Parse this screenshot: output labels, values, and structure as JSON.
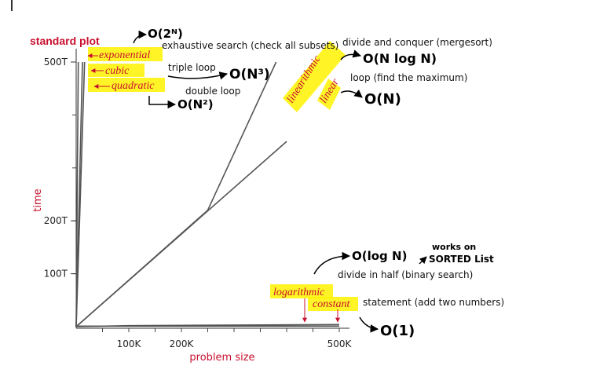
{
  "chart_data": {
    "type": "line",
    "title": "standard plot",
    "xlabel": "problem size",
    "ylabel": "time",
    "xlim": [
      0,
      500000
    ],
    "ylim": [
      0,
      500
    ],
    "x_ticks": [
      {
        "value": 100000,
        "label": "100K"
      },
      {
        "value": 200000,
        "label": "200K"
      },
      {
        "value": 500000,
        "label": "500K"
      }
    ],
    "y_ticks": [
      {
        "value": 100,
        "label": "100T"
      },
      {
        "value": 200,
        "label": "200T"
      },
      {
        "value": 500,
        "label": "500T"
      }
    ],
    "series": [
      {
        "name": "exponential",
        "x": [
          0,
          2000,
          4000
        ],
        "y": [
          0,
          250,
          500
        ],
        "description": "exhaustive search (check all subsets)",
        "annotation": "O(2^N)"
      },
      {
        "name": "cubic",
        "x": [
          0,
          6000,
          12000
        ],
        "y": [
          0,
          250,
          500
        ],
        "description": "triple loop",
        "annotation": "O(N^3)"
      },
      {
        "name": "quadratic",
        "x": [
          0,
          8000,
          16000
        ],
        "y": [
          0,
          250,
          500
        ],
        "description": "double loop",
        "annotation": "O(N^2)"
      },
      {
        "name": "linearithmic",
        "x": [
          0,
          125000,
          250000,
          380000
        ],
        "y": [
          0,
          110,
          220,
          500
        ],
        "description": "divide and conquer (mergesort)",
        "annotation": "O(N log N)"
      },
      {
        "name": "linear",
        "x": [
          0,
          200000,
          400000
        ],
        "y": [
          0,
          175,
          350
        ],
        "description": "loop (find the maximum)",
        "annotation": "O(N)"
      },
      {
        "name": "logarithmic",
        "x": [
          0,
          100000,
          500000
        ],
        "y": [
          0,
          2,
          4
        ],
        "description": "divide in half (binary search)",
        "annotation": "O(log N)",
        "note": "works on SORTED List"
      },
      {
        "name": "constant",
        "x": [
          0,
          500000
        ],
        "y": [
          1,
          1
        ],
        "description": "statement (add two numbers)",
        "annotation": "O(1)"
      }
    ]
  },
  "notes": {
    "big_o_exp": "O(2ᴺ)",
    "big_o_cubic": "O(N³)",
    "big_o_quad": "O(N²)",
    "big_o_nlogn": "O(N log N)",
    "big_o_linear": "O(N)",
    "big_o_log": "O(log N)",
    "big_o_const": "O(1)",
    "works_on": "works on",
    "sorted_list": "SORTED List"
  },
  "colors": {
    "label_red": "#c8102e",
    "highlight": "#fff200",
    "curve": "#555555"
  }
}
